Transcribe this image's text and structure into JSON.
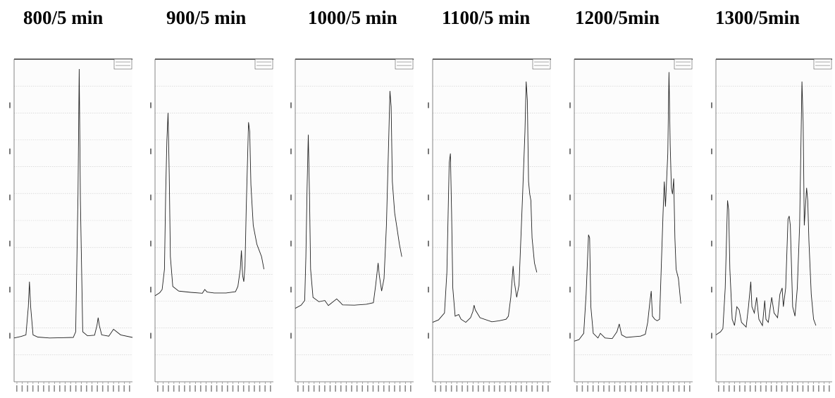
{
  "panels": [
    {
      "title": "800/5 min"
    },
    {
      "title": "900/5 min"
    },
    {
      "title": "1000/5 min"
    },
    {
      "title": "1100/5 min"
    },
    {
      "title": "1200/5min"
    },
    {
      "title": "1300/5min"
    }
  ],
  "chart_data": [
    {
      "type": "line",
      "title": "800/5 min",
      "xlabel": "",
      "ylabel": "",
      "grid": true,
      "xlim": [
        0,
        100
      ],
      "ylim": [
        0,
        100
      ],
      "series": [
        {
          "points": [
            [
              0,
              14
            ],
            [
              6,
              14.5
            ],
            [
              10,
              15
            ],
            [
              12,
              24
            ],
            [
              13,
              32
            ],
            [
              14,
              24
            ],
            [
              16,
              15
            ],
            [
              20,
              14.3
            ],
            [
              30,
              14
            ],
            [
              40,
              14.1
            ],
            [
              50,
              14.2
            ],
            [
              52,
              16
            ],
            [
              54,
              60
            ],
            [
              55,
              100
            ],
            [
              56,
              58
            ],
            [
              58,
              16
            ],
            [
              62,
              14.7
            ],
            [
              68,
              14.9
            ],
            [
              70,
              18
            ],
            [
              71,
              20.5
            ],
            [
              72,
              18
            ],
            [
              74,
              15
            ],
            [
              80,
              14.6
            ],
            [
              84,
              16.8
            ],
            [
              86,
              16.2
            ],
            [
              90,
              15
            ],
            [
              100,
              14.2
            ]
          ]
        }
      ]
    },
    {
      "type": "line",
      "title": "900/5 min",
      "xlabel": "",
      "ylabel": "",
      "grid": true,
      "xlim": [
        0,
        100
      ],
      "ylim": [
        0,
        100
      ],
      "series": [
        {
          "points": [
            [
              0,
              27.5
            ],
            [
              4,
              28.5
            ],
            [
              6,
              29.5
            ],
            [
              8,
              36
            ],
            [
              9,
              60
            ],
            [
              10,
              77
            ],
            [
              11,
              86
            ],
            [
              12,
              66
            ],
            [
              13,
              40
            ],
            [
              15,
              30.5
            ],
            [
              20,
              29
            ],
            [
              30,
              28.6
            ],
            [
              40,
              28.3
            ],
            [
              42,
              29.5
            ],
            [
              44,
              28.7
            ],
            [
              50,
              28.4
            ],
            [
              60,
              28.4
            ],
            [
              68,
              28.8
            ],
            [
              70,
              30.5
            ],
            [
              72,
              36
            ],
            [
              73,
              42
            ],
            [
              74,
              34
            ],
            [
              75,
              32
            ],
            [
              76,
              37
            ],
            [
              77,
              55
            ],
            [
              79,
              83
            ],
            [
              80,
              80
            ],
            [
              81,
              63
            ],
            [
              83,
              50
            ],
            [
              86,
              44
            ],
            [
              90,
              40
            ],
            [
              92,
              36
            ]
          ]
        }
      ]
    },
    {
      "type": "line",
      "title": "1000/5 min",
      "xlabel": "",
      "ylabel": "",
      "grid": true,
      "xlim": [
        0,
        100
      ],
      "ylim": [
        0,
        100
      ],
      "series": [
        {
          "points": [
            [
              0,
              23.5
            ],
            [
              5,
              24.5
            ],
            [
              8,
              26
            ],
            [
              9,
              40
            ],
            [
              10,
              62
            ],
            [
              11,
              79
            ],
            [
              12,
              60
            ],
            [
              13,
              36
            ],
            [
              15,
              27
            ],
            [
              20,
              25.6
            ],
            [
              25,
              26
            ],
            [
              28,
              24.4
            ],
            [
              30,
              25
            ],
            [
              35,
              26.5
            ],
            [
              38,
              25.4
            ],
            [
              40,
              24.6
            ],
            [
              50,
              24.5
            ],
            [
              60,
              24.8
            ],
            [
              66,
              25.3
            ],
            [
              68,
              31
            ],
            [
              70,
              38
            ],
            [
              71,
              34
            ],
            [
              73,
              29
            ],
            [
              75,
              33
            ],
            [
              77,
              50
            ],
            [
              79,
              78
            ],
            [
              80,
              93
            ],
            [
              81,
              88
            ],
            [
              82,
              64
            ],
            [
              84,
              54
            ],
            [
              86,
              49
            ],
            [
              88,
              44
            ],
            [
              90,
              40
            ]
          ]
        }
      ]
    },
    {
      "type": "line",
      "title": "1100/5 min",
      "xlabel": "",
      "ylabel": "",
      "grid": true,
      "xlim": [
        0,
        100
      ],
      "ylim": [
        0,
        100
      ],
      "series": [
        {
          "points": [
            [
              0,
              19
            ],
            [
              5,
              19.8
            ],
            [
              10,
              22
            ],
            [
              12,
              35
            ],
            [
              14,
              70
            ],
            [
              15,
              73
            ],
            [
              16,
              54
            ],
            [
              17,
              30
            ],
            [
              19,
              21
            ],
            [
              22,
              21.5
            ],
            [
              24,
              20
            ],
            [
              28,
              19
            ],
            [
              32,
              20.5
            ],
            [
              34,
              22.5
            ],
            [
              35,
              24.5
            ],
            [
              36,
              23
            ],
            [
              40,
              20.5
            ],
            [
              50,
              19.2
            ],
            [
              56,
              19.5
            ],
            [
              62,
              20
            ],
            [
              64,
              21
            ],
            [
              66,
              27
            ],
            [
              68,
              37
            ],
            [
              69,
              32
            ],
            [
              71,
              27
            ],
            [
              73,
              31
            ],
            [
              76,
              60
            ],
            [
              78,
              80
            ],
            [
              79,
              96
            ],
            [
              80,
              90
            ],
            [
              81,
              64
            ],
            [
              82,
              60
            ],
            [
              83,
              58
            ],
            [
              84,
              46
            ],
            [
              86,
              38
            ],
            [
              88,
              35
            ]
          ]
        }
      ]
    },
    {
      "type": "line",
      "title": "1200/5min",
      "xlabel": "",
      "ylabel": "",
      "grid": true,
      "xlim": [
        0,
        100
      ],
      "ylim": [
        0,
        100
      ],
      "series": [
        {
          "points": [
            [
              0,
              13
            ],
            [
              4,
              13.5
            ],
            [
              8,
              15.5
            ],
            [
              10,
              28
            ],
            [
              12,
              47
            ],
            [
              13,
              46
            ],
            [
              14,
              24
            ],
            [
              16,
              15.5
            ],
            [
              20,
              14
            ],
            [
              22,
              15.5
            ],
            [
              26,
              14
            ],
            [
              32,
              13.8
            ],
            [
              36,
              16
            ],
            [
              38,
              18.5
            ],
            [
              40,
              15
            ],
            [
              44,
              14.2
            ],
            [
              50,
              14.4
            ],
            [
              56,
              14.6
            ],
            [
              60,
              15.2
            ],
            [
              62,
              19
            ],
            [
              64,
              26
            ],
            [
              65,
              29
            ],
            [
              66,
              21
            ],
            [
              68,
              20
            ],
            [
              70,
              19.5
            ],
            [
              72,
              20
            ],
            [
              75,
              54
            ],
            [
              76,
              64
            ],
            [
              77,
              56
            ],
            [
              79,
              73
            ],
            [
              80,
              99
            ],
            [
              81,
              76
            ],
            [
              82,
              62
            ],
            [
              83,
              60
            ],
            [
              84,
              65
            ],
            [
              85,
              46
            ],
            [
              86,
              36
            ],
            [
              88,
              33
            ],
            [
              90,
              25
            ]
          ]
        }
      ]
    },
    {
      "type": "line",
      "title": "1300/5min",
      "xlabel": "",
      "ylabel": "",
      "grid": true,
      "xlim": [
        0,
        100
      ],
      "ylim": [
        0,
        100
      ],
      "series": [
        {
          "points": [
            [
              0,
              15
            ],
            [
              4,
              16
            ],
            [
              6,
              17
            ],
            [
              8,
              30
            ],
            [
              10,
              58
            ],
            [
              11,
              55
            ],
            [
              12,
              36
            ],
            [
              14,
              20
            ],
            [
              16,
              18
            ],
            [
              18,
              24
            ],
            [
              20,
              23
            ],
            [
              22,
              19
            ],
            [
              26,
              17.5
            ],
            [
              28,
              24
            ],
            [
              30,
              32
            ],
            [
              31,
              24
            ],
            [
              33,
              22
            ],
            [
              35,
              27
            ],
            [
              37,
              20
            ],
            [
              40,
              18
            ],
            [
              42,
              26
            ],
            [
              43,
              20
            ],
            [
              45,
              19
            ],
            [
              48,
              27
            ],
            [
              50,
              22
            ],
            [
              53,
              20.5
            ],
            [
              55,
              28
            ],
            [
              57,
              30
            ],
            [
              58,
              24
            ],
            [
              60,
              30
            ],
            [
              62,
              52
            ],
            [
              63,
              53
            ],
            [
              64,
              50
            ],
            [
              66,
              24
            ],
            [
              68,
              21
            ],
            [
              70,
              30
            ],
            [
              72,
              50
            ],
            [
              74,
              96
            ],
            [
              75,
              83
            ],
            [
              76,
              50
            ],
            [
              78,
              62
            ],
            [
              79,
              58
            ],
            [
              80,
              45
            ],
            [
              82,
              28
            ],
            [
              84,
              20
            ],
            [
              86,
              18
            ]
          ]
        }
      ]
    }
  ]
}
